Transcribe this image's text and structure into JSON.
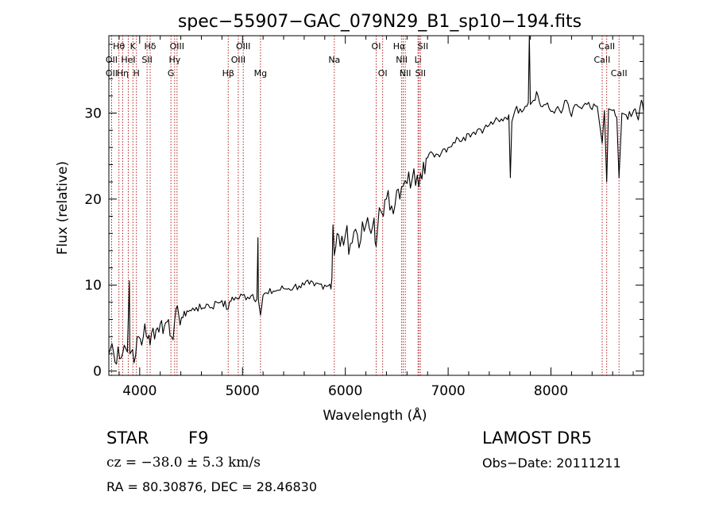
{
  "chart_data": {
    "type": "line",
    "title": "spec−55907−GAC_079N29_B1_sp10−194.fits",
    "xlabel": "Wavelength (Å)",
    "ylabel": "Flux (relative)",
    "xlim": [
      3700,
      8900
    ],
    "ylim": [
      -0.5,
      39
    ],
    "xticks": [
      4000,
      5000,
      6000,
      7000,
      8000
    ],
    "yticks": [
      0,
      10,
      20,
      30
    ],
    "line_color": "#000000",
    "marker_color": "#b22222",
    "series": [
      {
        "points": [
          [
            3700,
            2.0
          ],
          [
            3730,
            3.2
          ],
          [
            3760,
            1.0
          ],
          [
            3790,
            2.8
          ],
          [
            3820,
            1.5
          ],
          [
            3850,
            3.0
          ],
          [
            3880,
            2.2
          ],
          [
            3900,
            10.5
          ],
          [
            3905,
            2.0
          ],
          [
            3930,
            2.5
          ],
          [
            3960,
            1.8
          ],
          [
            3990,
            4.0
          ],
          [
            4020,
            3.0
          ],
          [
            4050,
            5.5
          ],
          [
            4080,
            3.8
          ],
          [
            4101,
            3.0
          ],
          [
            4130,
            5.0
          ],
          [
            4160,
            4.8
          ],
          [
            4200,
            5.5
          ],
          [
            4240,
            5.2
          ],
          [
            4280,
            6.0
          ],
          [
            4310,
            4.0
          ],
          [
            4340,
            5.8
          ],
          [
            4380,
            6.5
          ],
          [
            4420,
            6.2
          ],
          [
            4460,
            7.0
          ],
          [
            4500,
            7.0
          ],
          [
            4550,
            7.4
          ],
          [
            4600,
            7.2
          ],
          [
            4650,
            7.8
          ],
          [
            4700,
            7.4
          ],
          [
            4750,
            8.0
          ],
          [
            4800,
            8.2
          ],
          [
            4861,
            7.2
          ],
          [
            4900,
            8.6
          ],
          [
            4950,
            8.4
          ],
          [
            5000,
            8.8
          ],
          [
            5050,
            8.6
          ],
          [
            5100,
            8.9
          ],
          [
            5140,
            8.4
          ],
          [
            5150,
            15.5
          ],
          [
            5155,
            8.2
          ],
          [
            5175,
            6.5
          ],
          [
            5200,
            8.8
          ],
          [
            5250,
            9.0
          ],
          [
            5300,
            9.3
          ],
          [
            5350,
            9.4
          ],
          [
            5400,
            9.6
          ],
          [
            5450,
            9.6
          ],
          [
            5500,
            9.8
          ],
          [
            5550,
            9.9
          ],
          [
            5600,
            10.0
          ],
          [
            5650,
            10.1
          ],
          [
            5700,
            9.9
          ],
          [
            5750,
            10.1
          ],
          [
            5800,
            10.0
          ],
          [
            5850,
            10.1
          ],
          [
            5870,
            10.8
          ],
          [
            5880,
            17.0
          ],
          [
            5893,
            13.5
          ],
          [
            5920,
            16.0
          ],
          [
            5950,
            14.5
          ],
          [
            6000,
            15.8
          ],
          [
            6050,
            14.8
          ],
          [
            6100,
            16.5
          ],
          [
            6150,
            15.2
          ],
          [
            6200,
            17.0
          ],
          [
            6250,
            16.0
          ],
          [
            6280,
            17.8
          ],
          [
            6300,
            14.5
          ],
          [
            6330,
            19.0
          ],
          [
            6370,
            18.0
          ],
          [
            6400,
            20.0
          ],
          [
            6450,
            19.2
          ],
          [
            6500,
            21.0
          ],
          [
            6530,
            20.0
          ],
          [
            6563,
            21.5
          ],
          [
            6600,
            21.8
          ],
          [
            6650,
            22.3
          ],
          [
            6700,
            22.8
          ],
          [
            6730,
            23.0
          ],
          [
            6760,
            24.3
          ],
          [
            6800,
            24.8
          ],
          [
            6850,
            25.3
          ],
          [
            6900,
            25.2
          ],
          [
            6950,
            25.8
          ],
          [
            7000,
            26.0
          ],
          [
            7050,
            26.6
          ],
          [
            7100,
            27.0
          ],
          [
            7150,
            27.2
          ],
          [
            7200,
            27.6
          ],
          [
            7250,
            27.8
          ],
          [
            7300,
            28.2
          ],
          [
            7350,
            28.2
          ],
          [
            7400,
            28.6
          ],
          [
            7450,
            29.0
          ],
          [
            7500,
            29.0
          ],
          [
            7550,
            29.5
          ],
          [
            7590,
            29.8
          ],
          [
            7605,
            22.5
          ],
          [
            7620,
            29.0
          ],
          [
            7650,
            30.3
          ],
          [
            7700,
            30.5
          ],
          [
            7750,
            30.8
          ],
          [
            7780,
            31.2
          ],
          [
            7790,
            39.0
          ],
          [
            7800,
            31.0
          ],
          [
            7830,
            31.5
          ],
          [
            7860,
            32.5
          ],
          [
            7900,
            30.8
          ],
          [
            7950,
            31.0
          ],
          [
            8000,
            30.2
          ],
          [
            8050,
            30.5
          ],
          [
            8100,
            30.0
          ],
          [
            8150,
            31.5
          ],
          [
            8200,
            29.6
          ],
          [
            8250,
            31.0
          ],
          [
            8300,
            30.5
          ],
          [
            8350,
            31.0
          ],
          [
            8400,
            30.4
          ],
          [
            8450,
            30.8
          ],
          [
            8498,
            26.5
          ],
          [
            8520,
            30.3
          ],
          [
            8542,
            22.0
          ],
          [
            8560,
            30.5
          ],
          [
            8600,
            30.3
          ],
          [
            8640,
            29.5
          ],
          [
            8662,
            22.5
          ],
          [
            8690,
            30.0
          ],
          [
            8730,
            29.8
          ],
          [
            8780,
            29.6
          ],
          [
            8820,
            30.5
          ],
          [
            8850,
            29.2
          ],
          [
            8880,
            31.5
          ],
          [
            8900,
            30.2
          ]
        ]
      }
    ],
    "line_markers": [
      {
        "wavelength": 3727,
        "label": "OII",
        "row": 2,
        "shift": 0
      },
      {
        "wavelength": 3727,
        "label": "OII",
        "row": 1,
        "shift": 0
      },
      {
        "wavelength": 3798,
        "label": "Hθ",
        "row": 0,
        "shift": 0
      },
      {
        "wavelength": 3835,
        "label": "Hη",
        "row": 2,
        "shift": 0
      },
      {
        "wavelength": 3889,
        "label": "HeI",
        "row": 1,
        "shift": 0
      },
      {
        "wavelength": 3934,
        "label": "K",
        "row": 0,
        "shift": 0
      },
      {
        "wavelength": 3968,
        "label": "H",
        "row": 2,
        "shift": 0
      },
      {
        "wavelength": 4072,
        "label": "SII",
        "row": 1,
        "shift": 0
      },
      {
        "wavelength": 4102,
        "label": "Hδ",
        "row": 0,
        "shift": 0
      },
      {
        "wavelength": 4304,
        "label": "G",
        "row": 2,
        "shift": 0
      },
      {
        "wavelength": 4340,
        "label": "Hγ",
        "row": 1,
        "shift": 0
      },
      {
        "wavelength": 4363,
        "label": "OIII",
        "row": 0,
        "shift": 0
      },
      {
        "wavelength": 4861,
        "label": "Hβ",
        "row": 2,
        "shift": 0
      },
      {
        "wavelength": 4959,
        "label": "OIII",
        "row": 1,
        "shift": 0
      },
      {
        "wavelength": 5007,
        "label": "OIII",
        "row": 0,
        "shift": 0
      },
      {
        "wavelength": 5175,
        "label": "Mg",
        "row": 2,
        "shift": 0
      },
      {
        "wavelength": 5893,
        "label": "Na",
        "row": 1,
        "shift": 0
      },
      {
        "wavelength": 6300,
        "label": "OI",
        "row": 0,
        "shift": 0
      },
      {
        "wavelength": 6363,
        "label": "OI",
        "row": 2,
        "shift": 0
      },
      {
        "wavelength": 6548,
        "label": "NII",
        "row": 1,
        "shift": 0
      },
      {
        "wavelength": 6563,
        "label": "Hα",
        "row": 0,
        "shift": -5
      },
      {
        "wavelength": 6583,
        "label": "NII",
        "row": 2,
        "shift": 0
      },
      {
        "wavelength": 6707,
        "label": "Li",
        "row": 1,
        "shift": 0
      },
      {
        "wavelength": 6716,
        "label": "SII",
        "row": 0,
        "shift": 5
      },
      {
        "wavelength": 6731,
        "label": "SII",
        "row": 2,
        "shift": 0
      },
      {
        "wavelength": 8498,
        "label": "CaII",
        "row": 1,
        "shift": 0
      },
      {
        "wavelength": 8542,
        "label": "CaII",
        "row": 0,
        "shift": 0
      },
      {
        "wavelength": 8662,
        "label": "CaII",
        "row": 2,
        "shift": 0
      }
    ]
  },
  "info": {
    "object_class": "STAR",
    "subclass": "F9",
    "survey": "LAMOST DR5",
    "redshift": "cz = −38.0 ± 5.3 km/s",
    "obs_date": "Obs−Date: 20111211",
    "coords": "RA =  80.30876, DEC =  28.46830"
  }
}
